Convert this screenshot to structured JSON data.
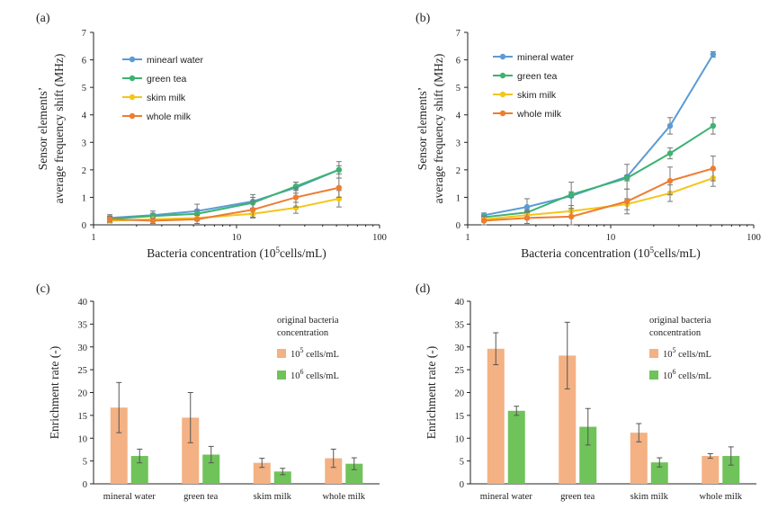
{
  "chart_data": [
    {
      "panel": "(a)",
      "type": "line",
      "xscale": "log",
      "xlim": [
        1,
        100
      ],
      "xticks": [
        "1",
        "10",
        "100"
      ],
      "ylim": [
        0,
        7
      ],
      "yticks": [
        "0",
        "1",
        "2",
        "3",
        "4",
        "5",
        "6",
        "7"
      ],
      "xlabel_main": "Bacteria concentration (10",
      "xlabel_sup": "5",
      "xlabel_end": "cells/mL)",
      "ylabel_line1": "Sensor elements’",
      "ylabel_line2": "average frequency shift (MHz)",
      "x": [
        1.3,
        2.6,
        5.3,
        13,
        26,
        52
      ],
      "legend_position": "top-left",
      "series": [
        {
          "name": "minearl water",
          "color": "#5b9bd5",
          "values": [
            0.25,
            0.35,
            0.5,
            0.85,
            1.35,
            2.0
          ],
          "errors": [
            0.12,
            0.15,
            0.25,
            0.25,
            0.2,
            0.3
          ]
        },
        {
          "name": "green tea",
          "color": "#3cb371",
          "values": [
            0.22,
            0.32,
            0.4,
            0.8,
            1.4,
            2.0
          ],
          "errors": [
            0.1,
            0.1,
            0.15,
            0.2,
            0.15,
            0.15
          ]
        },
        {
          "name": "skim milk",
          "color": "#f5c518",
          "values": [
            0.15,
            0.2,
            0.25,
            0.4,
            0.62,
            0.95
          ],
          "errors": [
            0.08,
            0.08,
            0.1,
            0.12,
            0.2,
            0.3
          ]
        },
        {
          "name": "whole milk",
          "color": "#ed7d31",
          "values": [
            0.2,
            0.15,
            0.2,
            0.55,
            1.0,
            1.35
          ],
          "errors": [
            0.1,
            0.1,
            0.15,
            0.3,
            0.35,
            0.35
          ]
        }
      ]
    },
    {
      "panel": "(b)",
      "type": "line",
      "xscale": "log",
      "xlim": [
        1,
        100
      ],
      "xticks": [
        "1",
        "10",
        "100"
      ],
      "ylim": [
        0,
        7
      ],
      "yticks": [
        "0",
        "1",
        "2",
        "3",
        "4",
        "5",
        "6",
        "7"
      ],
      "xlabel_main": "Bacteria concentration (10",
      "xlabel_sup": "5",
      "xlabel_end": "cells/mL)",
      "ylabel_line1": "Sensor elements’",
      "ylabel_line2": "average frequency shift (MHz)",
      "x": [
        1.3,
        2.6,
        5.3,
        13,
        26,
        52
      ],
      "legend_position": "top-left",
      "series": [
        {
          "name": "mineral water",
          "color": "#5b9bd5",
          "values": [
            0.35,
            0.65,
            1.05,
            1.75,
            3.6,
            6.2
          ],
          "errors": [
            0.08,
            0.3,
            0.5,
            0.45,
            0.3,
            0.1
          ]
        },
        {
          "name": "green tea",
          "color": "#3cb371",
          "values": [
            0.28,
            0.45,
            1.1,
            1.7,
            2.6,
            3.6
          ],
          "errors": [
            0.05,
            0.1,
            0.1,
            0.1,
            0.2,
            0.3
          ]
        },
        {
          "name": "skim milk",
          "color": "#f5c518",
          "values": [
            0.2,
            0.35,
            0.5,
            0.75,
            1.15,
            1.7
          ],
          "errors": [
            0.1,
            0.15,
            0.2,
            0.2,
            0.3,
            0.3
          ]
        },
        {
          "name": "whole milk",
          "color": "#ed7d31",
          "values": [
            0.15,
            0.25,
            0.3,
            0.85,
            1.6,
            2.05
          ],
          "errors": [
            0.15,
            0.2,
            0.3,
            0.45,
            0.5,
            0.45
          ]
        }
      ]
    },
    {
      "panel": "(c)",
      "type": "bar",
      "ylim": [
        0,
        40
      ],
      "yticks": [
        "0",
        "5",
        "10",
        "15",
        "20",
        "25",
        "30",
        "35",
        "40"
      ],
      "ylabel": "Enrichment rate (-)",
      "categories": [
        "mineral water",
        "green tea",
        "skim milk",
        "whole milk"
      ],
      "legend_title_line1": "original bacteria",
      "legend_title_line2": "concentration",
      "legend_position": "top-right",
      "series": [
        {
          "name_base": "10",
          "name_sup": "5",
          "name_unit": " cells/mL",
          "color": "#f4b183",
          "values": [
            16.7,
            14.5,
            4.6,
            5.6
          ],
          "errors": [
            5.5,
            5.5,
            1.0,
            2.0
          ]
        },
        {
          "name_base": "10",
          "name_sup": "6",
          "name_unit": " cells/mL",
          "color": "#70c35a",
          "values": [
            6.1,
            6.4,
            2.7,
            4.4
          ],
          "errors": [
            1.5,
            1.8,
            0.7,
            1.3
          ]
        }
      ]
    },
    {
      "panel": "(d)",
      "type": "bar",
      "ylim": [
        0,
        40
      ],
      "yticks": [
        "0",
        "5",
        "10",
        "15",
        "20",
        "25",
        "30",
        "35",
        "40"
      ],
      "ylabel": "Enrichment rate (-)",
      "categories": [
        "mineral water",
        "green tea",
        "skim milk",
        "whole milk"
      ],
      "legend_title_line1": "original bacteria",
      "legend_title_line2": "concentration",
      "legend_position": "top-right",
      "series": [
        {
          "name_base": "10",
          "name_sup": "5",
          "name_unit": " cells/mL",
          "color": "#f4b183",
          "values": [
            29.6,
            28.1,
            11.2,
            6.1
          ],
          "errors": [
            3.5,
            7.3,
            2.0,
            0.5
          ]
        },
        {
          "name_base": "10",
          "name_sup": "6",
          "name_unit": " cells/mL",
          "color": "#70c35a",
          "values": [
            16.0,
            12.5,
            4.7,
            6.1
          ],
          "errors": [
            1.0,
            4.0,
            1.0,
            2.0
          ]
        }
      ]
    }
  ]
}
